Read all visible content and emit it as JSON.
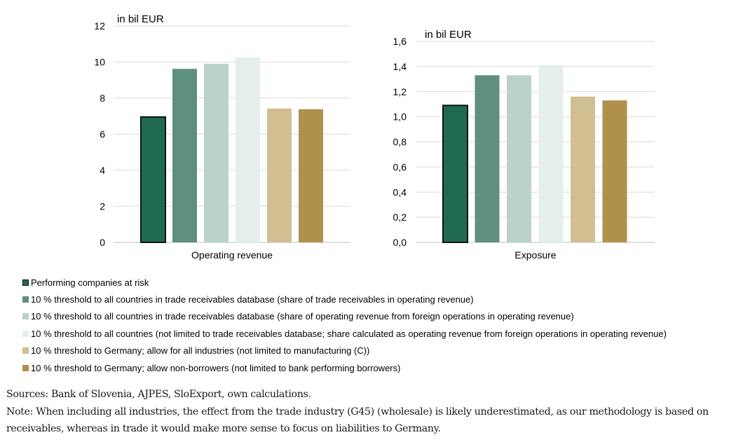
{
  "chart_data": [
    {
      "type": "bar",
      "unit_label": "in bil EUR",
      "xlabel": "Operating revenue",
      "ylim": [
        0,
        12
      ],
      "yticks": [
        "0",
        "2",
        "4",
        "6",
        "8",
        "10",
        "12"
      ],
      "values": [
        6.95,
        9.62,
        9.9,
        10.25,
        7.42,
        7.38
      ]
    },
    {
      "type": "bar",
      "unit_label": "in bil EUR",
      "xlabel": "Exposure",
      "ylim": [
        0,
        1.6
      ],
      "yticks": [
        "0,0",
        "0,2",
        "0,4",
        "0,6",
        "0,8",
        "1,0",
        "1,2",
        "1,4",
        "1,6"
      ],
      "values": [
        1.09,
        1.33,
        1.33,
        1.41,
        1.16,
        1.13
      ]
    }
  ],
  "series": [
    {
      "name": "Performing companies at risk",
      "color": "#206a52",
      "outlined": true
    },
    {
      "name": "10 % threshold to all countries in trade receivables database (share of trade receivables in operating revenue)",
      "color": "#5f8f7d"
    },
    {
      "name": "10 % threshold to all countries in trade receivables database (share of operating revenue from foreign operations in operating revenue)",
      "color": "#bad2ca"
    },
    {
      "name": "10 % threshold to all countries (not limited to trade receivables database; share calculated as operating revenue from foreign operations in operating revenue)",
      "color": "#e5efeb"
    },
    {
      "name": "10 % threshold to Germany; allow for all industries (not limited to manufacturing (C))",
      "color": "#d1be91"
    },
    {
      "name": "10 % threshold to Germany; allow non-borrowers (not limited to bank performing borrowers)",
      "color": "#b0914b"
    }
  ],
  "notes": {
    "sources": "Sources: Bank of Slovenia, AJPES, SloExport, own calculations.",
    "note": "Note: When including all industries, the effect from the trade industry (G45) (wholesale) is likely underestimated, as our methodology is based on receivables, whereas in trade it would make more sense to focus on liabilities to Germany."
  }
}
